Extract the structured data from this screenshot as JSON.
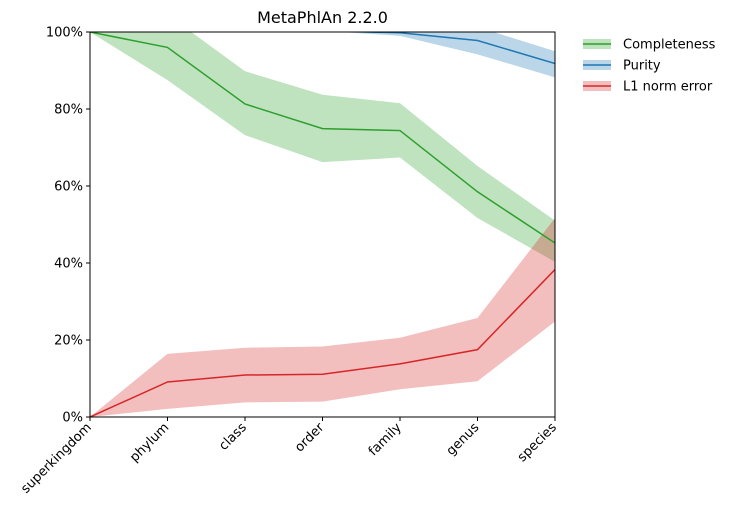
{
  "chart_data": {
    "type": "line",
    "title": "MetaPhlAn 2.2.0",
    "xlabel": "",
    "ylabel": "",
    "categories": [
      "superkingdom",
      "phylum",
      "class",
      "order",
      "family",
      "genus",
      "species"
    ],
    "ylim": [
      0,
      100
    ],
    "yticks": [
      "0%",
      "20%",
      "40%",
      "60%",
      "80%",
      "100%"
    ],
    "grid": false,
    "legend_position": "outside-top-right",
    "series": [
      {
        "name": "Completeness",
        "color": "#2ca02c",
        "band_color": "#2ca02c",
        "values": [
          100,
          96,
          81.3,
          74.9,
          74.4,
          58.5,
          45.2
        ],
        "lower": [
          100,
          87.5,
          73.2,
          66.2,
          67.4,
          51.7,
          40.3
        ],
        "upper": [
          100,
          104.5,
          89.8,
          83.7,
          81.5,
          65.2,
          51.0
        ]
      },
      {
        "name": "Purity",
        "color": "#1f77b4",
        "band_color": "#1f77b4",
        "values": [
          101.5,
          101.2,
          100.8,
          100.3,
          99.8,
          97.8,
          91.8
        ],
        "lower": [
          101.5,
          101.2,
          100.8,
          100.3,
          99.0,
          94.2,
          88.2
        ],
        "upper": [
          101.5,
          101.2,
          100.8,
          100.5,
          101.0,
          101.3,
          95.0
        ]
      },
      {
        "name": "L1 norm error",
        "color": "#d62728",
        "band_color": "#d62728",
        "values": [
          0,
          9.1,
          10.9,
          11.1,
          13.8,
          17.5,
          38.3
        ],
        "lower": [
          0,
          2.1,
          3.8,
          4.0,
          7.2,
          9.3,
          24.8
        ],
        "upper": [
          0,
          16.4,
          18.0,
          18.3,
          20.6,
          25.7,
          51.7
        ]
      }
    ]
  }
}
